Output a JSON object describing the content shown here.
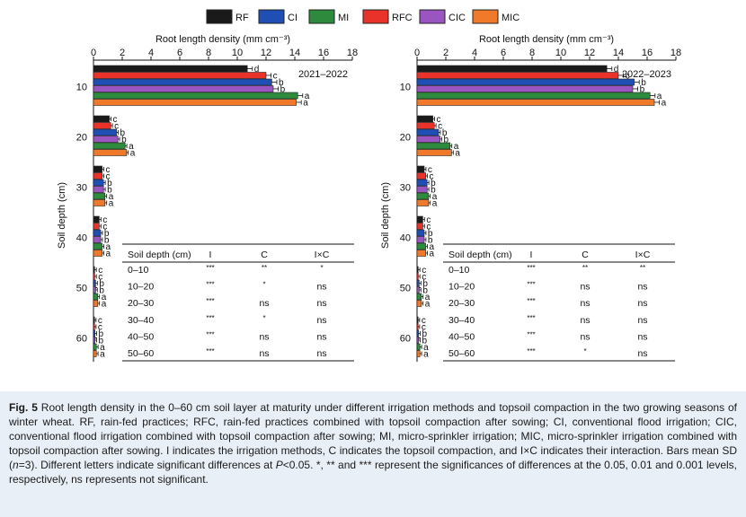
{
  "legend": [
    {
      "key": "RF",
      "color": "#1a1a1a"
    },
    {
      "key": "CI",
      "color": "#1f4fb4"
    },
    {
      "key": "MI",
      "color": "#2e8b3e"
    },
    {
      "key": "RFC",
      "color": "#e8322a"
    },
    {
      "key": "CIC",
      "color": "#9b55c0"
    },
    {
      "key": "MIC",
      "color": "#f07a2a"
    }
  ],
  "chart_data": [
    {
      "type": "bar",
      "orientation": "horizontal",
      "title": "2021–2022",
      "xlabel": "Root length density (mm cm⁻³)",
      "ylabel": "Soil depth (cm)",
      "xlim": [
        0,
        18
      ],
      "xticks": [
        "0",
        "2",
        "4",
        "6",
        "8",
        "10",
        "12",
        "14",
        "16",
        "18"
      ],
      "yticks": [
        "10",
        "20",
        "30",
        "40",
        "50",
        "60"
      ],
      "depth_groups": [
        "0–10",
        "10–20",
        "20–30",
        "30–40",
        "40–50",
        "50–60"
      ],
      "bar_order": [
        "RF",
        "RFC",
        "CI",
        "CIC",
        "MI",
        "MIC"
      ],
      "series": [
        {
          "name": "RF",
          "values": [
            10.7,
            1.1,
            0.6,
            0.4,
            0.08,
            0.06
          ],
          "letters": [
            "d",
            "c",
            "c",
            "c",
            "c",
            "c"
          ]
        },
        {
          "name": "RFC",
          "values": [
            12.0,
            1.2,
            0.6,
            0.4,
            0.08,
            0.06
          ],
          "letters": [
            "c",
            "c",
            "c",
            "c",
            "c",
            "c"
          ]
        },
        {
          "name": "CI",
          "values": [
            12.4,
            1.6,
            0.7,
            0.5,
            0.15,
            0.1
          ],
          "letters": [
            "b",
            "b",
            "b",
            "b",
            "b",
            "b"
          ]
        },
        {
          "name": "CIC",
          "values": [
            12.5,
            1.7,
            0.7,
            0.5,
            0.15,
            0.1
          ],
          "letters": [
            "b",
            "b",
            "b",
            "b",
            "b",
            "b"
          ]
        },
        {
          "name": "MI",
          "values": [
            14.2,
            2.2,
            0.8,
            0.6,
            0.3,
            0.2
          ],
          "letters": [
            "a",
            "a",
            "a",
            "a",
            "a",
            "a"
          ]
        },
        {
          "name": "MIC",
          "values": [
            14.1,
            2.3,
            0.8,
            0.6,
            0.3,
            0.2
          ],
          "letters": [
            "a",
            "a",
            "a",
            "a",
            "a",
            "a"
          ]
        }
      ],
      "table": {
        "header": [
          "Soil depth (cm)",
          "I",
          "C",
          "I×C"
        ],
        "rows": [
          [
            "0–10",
            "***",
            "**",
            "*"
          ],
          [
            "10–20",
            "***",
            "*",
            "ns"
          ],
          [
            "20–30",
            "***",
            "ns",
            "ns"
          ],
          [
            "30–40",
            "***",
            "*",
            "ns"
          ],
          [
            "40–50",
            "***",
            "ns",
            "ns"
          ],
          [
            "50–60",
            "***",
            "ns",
            "ns"
          ]
        ]
      }
    },
    {
      "type": "bar",
      "orientation": "horizontal",
      "title": "2022–2023",
      "xlabel": "Root length density (mm cm⁻³)",
      "ylabel": "Soil depth (cm)",
      "xlim": [
        0,
        18
      ],
      "xticks": [
        "0",
        "2",
        "4",
        "6",
        "8",
        "10",
        "12",
        "14",
        "16",
        "18"
      ],
      "yticks": [
        "10",
        "20",
        "30",
        "40",
        "50",
        "60"
      ],
      "depth_groups": [
        "0–10",
        "10–20",
        "20–30",
        "30–40",
        "40–50",
        "50–60"
      ],
      "bar_order": [
        "RF",
        "RFC",
        "CI",
        "CIC",
        "MI",
        "MIC"
      ],
      "series": [
        {
          "name": "RF",
          "values": [
            13.2,
            1.1,
            0.5,
            0.4,
            0.08,
            0.06
          ],
          "letters": [
            "d",
            "c",
            "c",
            "c",
            "c",
            "c"
          ]
        },
        {
          "name": "RFC",
          "values": [
            14.0,
            1.2,
            0.6,
            0.4,
            0.08,
            0.06
          ],
          "letters": [
            "c",
            "c",
            "c",
            "c",
            "c",
            "c"
          ]
        },
        {
          "name": "CI",
          "values": [
            15.1,
            1.5,
            0.7,
            0.5,
            0.15,
            0.1
          ],
          "letters": [
            "b",
            "b",
            "b",
            "b",
            "b",
            "b"
          ]
        },
        {
          "name": "CIC",
          "values": [
            15.0,
            1.6,
            0.7,
            0.5,
            0.15,
            0.1
          ],
          "letters": [
            "b",
            "b",
            "b",
            "b",
            "b",
            "b"
          ]
        },
        {
          "name": "MI",
          "values": [
            16.2,
            2.3,
            0.8,
            0.6,
            0.3,
            0.2
          ],
          "letters": [
            "a",
            "a",
            "a",
            "a",
            "a",
            "a"
          ]
        },
        {
          "name": "MIC",
          "values": [
            16.5,
            2.4,
            0.8,
            0.6,
            0.3,
            0.2
          ],
          "letters": [
            "a",
            "a",
            "a",
            "a",
            "a",
            "a"
          ]
        }
      ],
      "table": {
        "header": [
          "Soil depth (cm)",
          "I",
          "C",
          "I×C"
        ],
        "rows": [
          [
            "0–10",
            "***",
            "**",
            "**"
          ],
          [
            "10–20",
            "***",
            "ns",
            "ns"
          ],
          [
            "20–30",
            "***",
            "ns",
            "ns"
          ],
          [
            "30–40",
            "***",
            "ns",
            "ns"
          ],
          [
            "40–50",
            "***",
            "ns",
            "ns"
          ],
          [
            "50–60",
            "***",
            "*",
            "ns"
          ]
        ]
      }
    }
  ],
  "caption": {
    "label": "Fig. 5",
    "parts": [
      {
        "t": "Root length density in the 0–60 cm soil layer at maturity under different irrigation methods and topsoil compaction in the two growing seasons of winter wheat.  RF, rain-fed practices; RFC, rain-fed practices combined with topsoil compaction after sowing; CI, conventional flood irrigation; CIC, conventional flood irrigation combined with topsoil compaction after sowing; MI, micro-sprinkler irrigation; MIC, micro-sprinkler irrigation combined with topsoil compaction after sowing.  I indicates the irrigation methods, C indicates the topsoil compaction, and I×C indicates their interaction.  Bars mean SD (",
        "i": false
      },
      {
        "t": "n",
        "i": true
      },
      {
        "t": "=3).  Different letters indicate significant differences at ",
        "i": false
      },
      {
        "t": "P",
        "i": true
      },
      {
        "t": "<0.05.  *, ** and *** represent the significances of differences at the 0.05, 0.01 and 0.001 levels, respectively, ns represents not significant.",
        "i": false
      }
    ]
  }
}
